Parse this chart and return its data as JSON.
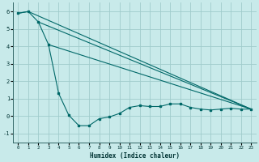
{
  "xlabel": "Humidex (Indice chaleur)",
  "bg_color": "#c8eaea",
  "grid_color": "#a0cccc",
  "line_color": "#006868",
  "xlim": [
    -0.5,
    23.5
  ],
  "ylim": [
    -1.5,
    6.5
  ],
  "yticks": [
    -1,
    0,
    1,
    2,
    3,
    4,
    5,
    6
  ],
  "xticks": [
    0,
    1,
    2,
    3,
    4,
    5,
    6,
    7,
    8,
    9,
    10,
    11,
    12,
    13,
    14,
    15,
    16,
    17,
    18,
    19,
    20,
    21,
    22,
    23
  ],
  "series1_x": [
    0,
    1,
    2,
    3,
    4,
    5,
    6,
    7,
    8,
    9,
    10,
    11,
    12,
    13,
    14,
    15,
    16,
    17,
    18,
    19,
    20,
    21,
    22,
    23
  ],
  "series1_y": [
    5.9,
    6.0,
    5.4,
    4.1,
    1.3,
    0.05,
    -0.55,
    -0.55,
    -0.15,
    -0.05,
    0.15,
    0.5,
    0.6,
    0.55,
    0.55,
    0.7,
    0.7,
    0.5,
    0.4,
    0.35,
    0.4,
    0.45,
    0.4,
    0.4
  ],
  "series2_x": [
    0,
    1,
    23
  ],
  "series2_y": [
    5.9,
    6.0,
    0.4
  ],
  "series3_x": [
    2,
    23
  ],
  "series3_y": [
    5.4,
    0.4
  ],
  "series4_x": [
    3,
    23
  ],
  "series4_y": [
    4.1,
    0.4
  ]
}
